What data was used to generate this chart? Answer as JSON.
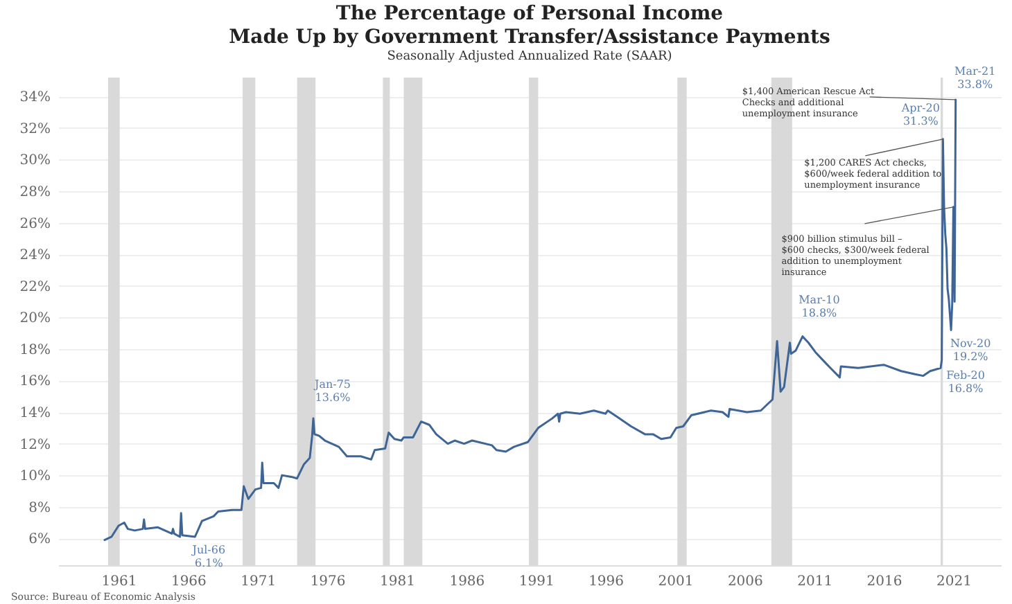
{
  "chart_data": {
    "type": "line",
    "title": "The Percentage of Personal Income\nMade Up by Government Transfer/Assistance Payments",
    "subtitle": "Seasonally Adjusted Annualized Rate (SAAR)",
    "x": [
      "1960-01",
      "1960-07",
      "1961-01",
      "1961-06",
      "1961-09",
      "1962-03",
      "1962-10",
      "1962-11",
      "1962-12",
      "1963-11",
      "1964-11",
      "1964-12",
      "1965-01",
      "1965-06",
      "1965-07",
      "1965-08",
      "1966-07",
      "1967-01",
      "1967-11",
      "1968-03",
      "1969-03",
      "1969-11",
      "1970-01",
      "1970-05",
      "1970-11",
      "1971-04",
      "1971-05",
      "1971-06",
      "1972-03",
      "1972-07",
      "1972-10",
      "1973-06",
      "1973-11",
      "1974-05",
      "1974-10",
      "1974-12",
      "1975-01",
      "1975-02",
      "1975-06",
      "1975-11",
      "1976-11",
      "1977-06",
      "1978-06",
      "1979-03",
      "1979-06",
      "1980-03",
      "1980-06",
      "1980-11",
      "1981-05",
      "1981-07",
      "1982-03",
      "1982-10",
      "1983-05",
      "1983-11",
      "1984-09",
      "1985-03",
      "1985-11",
      "1986-06",
      "1987-11",
      "1988-03",
      "1988-11",
      "1989-06",
      "1990-06",
      "1991-03",
      "1992-03",
      "1992-08",
      "1992-09",
      "1992-10",
      "1993-03",
      "1994-03",
      "1995-03",
      "1996-01",
      "1996-03",
      "1996-11",
      "1997-11",
      "1998-11",
      "1999-06",
      "2000-01",
      "2000-09",
      "2001-02",
      "2001-08",
      "2002-03",
      "2003-08",
      "2004-06",
      "2004-11",
      "2004-12",
      "2006-03",
      "2007-03",
      "2008-01",
      "2008-05",
      "2008-08",
      "2008-11",
      "2009-04",
      "2009-05",
      "2009-09",
      "2010-03",
      "2010-08",
      "2011-02",
      "2011-11",
      "2012-03",
      "2012-11",
      "2012-12",
      "2014-03",
      "2016-01",
      "2017-04",
      "2018-04",
      "2018-11",
      "2019-05",
      "2020-02",
      "2020-03",
      "2020-04",
      "2020-05",
      "2020-06",
      "2020-07",
      "2020-08",
      "2020-09",
      "2020-10",
      "2020-11",
      "2020-12",
      "2021-01",
      "2021-02",
      "2021-03"
    ],
    "series": [
      {
        "color": "#3e6595",
        "values": [
          5.9,
          6.1,
          6.8,
          7.0,
          6.6,
          6.5,
          6.6,
          7.2,
          6.6,
          6.7,
          6.3,
          6.6,
          6.3,
          6.1,
          7.6,
          6.2,
          6.1,
          7.1,
          7.4,
          7.7,
          7.8,
          7.8,
          9.3,
          8.5,
          9.1,
          9.2,
          10.8,
          9.5,
          9.5,
          9.2,
          10.0,
          9.9,
          9.8,
          10.7,
          11.1,
          12.5,
          13.6,
          12.6,
          12.5,
          12.2,
          11.8,
          11.2,
          11.2,
          11.0,
          11.6,
          11.7,
          12.7,
          12.3,
          12.2,
          12.4,
          12.4,
          13.4,
          13.2,
          12.6,
          12.0,
          12.2,
          12.0,
          12.2,
          11.9,
          11.6,
          11.5,
          11.8,
          12.1,
          13.0,
          13.6,
          13.9,
          13.4,
          13.9,
          14.0,
          13.9,
          14.1,
          13.9,
          14.1,
          13.7,
          13.1,
          12.6,
          12.6,
          12.3,
          12.4,
          13.0,
          13.1,
          13.8,
          14.1,
          14.0,
          13.7,
          14.2,
          14.0,
          14.1,
          14.8,
          18.5,
          15.3,
          15.6,
          18.4,
          17.7,
          17.9,
          18.8,
          18.4,
          17.8,
          17.1,
          16.8,
          16.2,
          16.9,
          16.8,
          17.0,
          16.6,
          16.4,
          16.3,
          16.6,
          16.8,
          17.3,
          31.3,
          27.0,
          25.3,
          24.4,
          21.8,
          21.2,
          20.2,
          19.2,
          20.9,
          27.0,
          21.0,
          33.8
        ]
      }
    ],
    "xlim": [
      "1956-09",
      "2024-06"
    ],
    "xticks": [
      "1961",
      "1966",
      "1971",
      "1976",
      "1981",
      "1986",
      "1991",
      "1996",
      "2001",
      "2006",
      "2011",
      "2016",
      "2021"
    ],
    "ylim": [
      4.3,
      35.2
    ],
    "yticks": [
      {
        "value": 6,
        "label": "6%"
      },
      {
        "value": 8,
        "label": "8%"
      },
      {
        "value": 10,
        "label": "10%"
      },
      {
        "value": 12,
        "label": "12%"
      },
      {
        "value": 14,
        "label": "14%"
      },
      {
        "value": 16,
        "label": "16%"
      },
      {
        "value": 18,
        "label": "18%"
      },
      {
        "value": 20,
        "label": "20%"
      },
      {
        "value": 22,
        "label": "22%"
      },
      {
        "value": 24,
        "label": "24%"
      },
      {
        "value": 26,
        "label": "26%"
      },
      {
        "value": 28,
        "label": "28%"
      },
      {
        "value": 30,
        "label": "30%"
      },
      {
        "value": 32,
        "label": "32%"
      },
      {
        "value": 34,
        "label": "34%"
      }
    ],
    "grid": "y",
    "bands": [
      {
        "axis": "x",
        "from": "1960-04",
        "to": "1961-02",
        "color": "#d9d9d9"
      },
      {
        "axis": "x",
        "from": "1969-12",
        "to": "1970-11",
        "color": "#d9d9d9"
      },
      {
        "axis": "x",
        "from": "1973-11",
        "to": "1975-03",
        "color": "#d9d9d9"
      },
      {
        "axis": "x",
        "from": "1980-01",
        "to": "1980-07",
        "color": "#d9d9d9"
      },
      {
        "axis": "x",
        "from": "1981-07",
        "to": "1982-11",
        "color": "#d9d9d9"
      },
      {
        "axis": "x",
        "from": "1990-07",
        "to": "1991-03",
        "color": "#d9d9d9"
      },
      {
        "axis": "x",
        "from": "2001-03",
        "to": "2001-11",
        "color": "#d9d9d9"
      },
      {
        "axis": "x",
        "from": "2007-12",
        "to": "2009-06",
        "color": "#d9d9d9"
      },
      {
        "axis": "x",
        "from": "2020-02",
        "to": "2020-04",
        "color": "#d9d9d9"
      }
    ],
    "annotations": [
      {
        "text": "Jul-66\n6.1%",
        "x": "1966-07",
        "y": 6.1
      },
      {
        "text": "Jan-75\n13.6%",
        "x": "1975-01",
        "y": 13.6
      },
      {
        "text": "Mar-10\n18.8%",
        "x": "2010-03",
        "y": 18.8
      },
      {
        "text": "Apr-20\n31.3%",
        "x": "2020-04",
        "y": 31.3
      },
      {
        "text": "Mar-21\n33.8%",
        "x": "2021-03",
        "y": 33.8
      },
      {
        "text": "Nov-20\n19.2%",
        "x": "2020-11",
        "y": 19.2
      },
      {
        "text": "Feb-20\n16.8%",
        "x": "2020-02",
        "y": 16.8
      },
      {
        "text": "$1,400 American Rescue Act\nChecks and additional\nunemployment insurance",
        "x": "2021-03",
        "y": 33.8
      },
      {
        "text": "$1,200 CARES Act checks,\n$600/week federal addition to\nunemployment insurance",
        "x": "2020-04",
        "y": 31.3
      },
      {
        "text": "$900 billion stimulus bill –\n$600 checks, $300/week federal\naddition to unemployment\ninsurance",
        "x": "2021-01",
        "y": 27.0
      },
      "Source: Bureau of Economic Analysis"
    ]
  }
}
